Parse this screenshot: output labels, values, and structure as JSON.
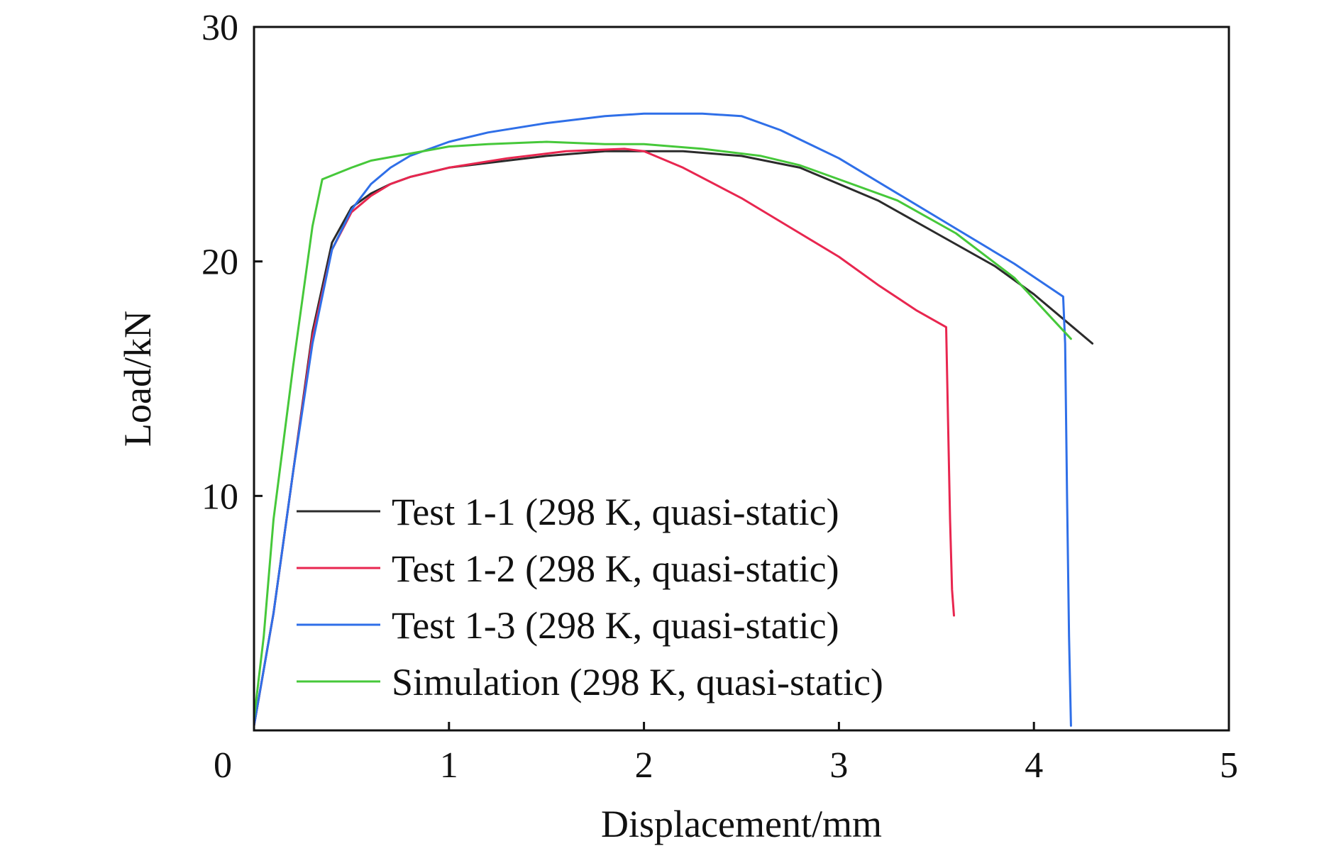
{
  "chart_data": {
    "type": "line",
    "xlabel": "Displacement/mm",
    "ylabel": "Load/kN",
    "xlim": [
      0,
      5
    ],
    "ylim": [
      0,
      30
    ],
    "xticks": [
      0,
      1,
      2,
      3,
      4,
      5
    ],
    "yticks": [
      10,
      20,
      30
    ],
    "grid": false,
    "legend_position": "bottom-left",
    "series": [
      {
        "name": "Test 1-1 (298 K, quasi-static)",
        "color": "#2b2b2b",
        "x": [
          0.0,
          0.1,
          0.2,
          0.3,
          0.4,
          0.5,
          0.6,
          0.7,
          0.8,
          1.0,
          1.2,
          1.5,
          1.8,
          2.0,
          2.2,
          2.5,
          2.8,
          3.0,
          3.2,
          3.5,
          3.8,
          4.0,
          4.2,
          4.3
        ],
        "y": [
          0.2,
          5.0,
          11.0,
          17.0,
          20.8,
          22.3,
          22.9,
          23.3,
          23.6,
          24.0,
          24.2,
          24.5,
          24.7,
          24.7,
          24.7,
          24.5,
          24.0,
          23.3,
          22.6,
          21.2,
          19.8,
          18.6,
          17.2,
          16.5
        ]
      },
      {
        "name": "Test 1-2 (298 K, quasi-static)",
        "color": "#e8264f",
        "x": [
          0.0,
          0.1,
          0.2,
          0.3,
          0.4,
          0.5,
          0.6,
          0.7,
          0.8,
          1.0,
          1.3,
          1.6,
          1.9,
          2.0,
          2.2,
          2.5,
          2.8,
          3.0,
          3.2,
          3.4,
          3.55,
          3.56,
          3.57,
          3.58,
          3.59
        ],
        "y": [
          0.2,
          5.0,
          11.0,
          16.8,
          20.5,
          22.1,
          22.8,
          23.3,
          23.6,
          24.0,
          24.4,
          24.7,
          24.8,
          24.7,
          24.0,
          22.7,
          21.2,
          20.2,
          19.0,
          17.9,
          17.2,
          13.0,
          9.0,
          6.0,
          4.9
        ]
      },
      {
        "name": "Test 1-3 (298 K, quasi-static)",
        "color": "#2f6fe8",
        "x": [
          0.0,
          0.1,
          0.2,
          0.3,
          0.4,
          0.5,
          0.6,
          0.7,
          0.8,
          1.0,
          1.2,
          1.5,
          1.8,
          2.0,
          2.3,
          2.5,
          2.7,
          3.0,
          3.3,
          3.6,
          3.9,
          4.15,
          4.16,
          4.17,
          4.18,
          4.19
        ],
        "y": [
          0.2,
          5.0,
          11.0,
          16.5,
          20.5,
          22.2,
          23.3,
          24.0,
          24.5,
          25.1,
          25.5,
          25.9,
          26.2,
          26.3,
          26.3,
          26.2,
          25.6,
          24.4,
          22.9,
          21.4,
          19.9,
          18.5,
          16.5,
          10.0,
          4.0,
          0.2
        ]
      },
      {
        "name": "Simulation (298 K, quasi-static)",
        "color": "#46c83a",
        "x": [
          0.0,
          0.05,
          0.1,
          0.2,
          0.3,
          0.35,
          0.5,
          0.6,
          0.8,
          1.0,
          1.2,
          1.5,
          1.8,
          2.0,
          2.3,
          2.6,
          2.8,
          3.0,
          3.3,
          3.6,
          3.9,
          4.1,
          4.19
        ],
        "y": [
          0.5,
          4.0,
          9.0,
          15.5,
          21.5,
          23.5,
          24.0,
          24.3,
          24.6,
          24.9,
          25.0,
          25.1,
          25.0,
          25.0,
          24.8,
          24.5,
          24.1,
          23.5,
          22.6,
          21.2,
          19.3,
          17.5,
          16.7
        ]
      }
    ]
  }
}
